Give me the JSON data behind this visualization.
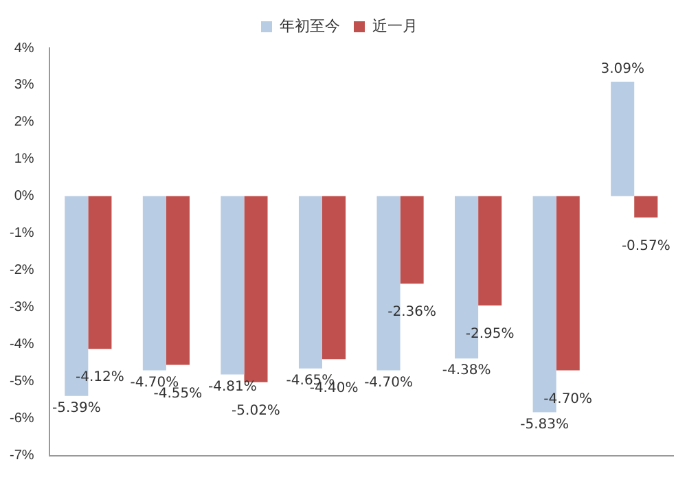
{
  "chart_data": {
    "type": "bar",
    "categories": [
      null,
      null,
      null,
      null,
      null,
      null,
      null,
      null
    ],
    "series": [
      {
        "name": "年初至今",
        "color": "#b8cce4",
        "values": [
          -5.39,
          -4.7,
          -4.81,
          -4.65,
          -4.7,
          -4.38,
          -5.83,
          3.09
        ],
        "value_labels": [
          "-5.39%",
          "-4.70%",
          "-4.81%",
          "-4.65%",
          "-4.70%",
          "-4.38%",
          "-5.83%",
          "3.09%"
        ]
      },
      {
        "name": "近一月",
        "color": "#c0504d",
        "values": [
          -4.12,
          -4.55,
          -5.02,
          -4.4,
          -2.36,
          -2.95,
          -4.7,
          -0.57
        ],
        "value_labels": [
          "-4.12%",
          "-4.55%",
          "-5.02%",
          "-4.40%",
          "-2.36%",
          "-2.95%",
          "-4.70%",
          "-0.57%"
        ]
      }
    ],
    "ylim": [
      -7,
      4
    ],
    "yticks": [
      {
        "value": -7,
        "label": "-7%"
      },
      {
        "value": -6,
        "label": "-6%"
      },
      {
        "value": -5,
        "label": "-5%"
      },
      {
        "value": -4,
        "label": "-4%"
      },
      {
        "value": -3,
        "label": "-3%"
      },
      {
        "value": -2,
        "label": "-2%"
      },
      {
        "value": -1,
        "label": "-1%"
      },
      {
        "value": 0,
        "label": "0%"
      },
      {
        "value": 1,
        "label": "1%"
      },
      {
        "value": 2,
        "label": "2%"
      },
      {
        "value": 3,
        "label": "3%"
      },
      {
        "value": 4,
        "label": "4%"
      }
    ],
    "grid": false,
    "legend": "top"
  }
}
